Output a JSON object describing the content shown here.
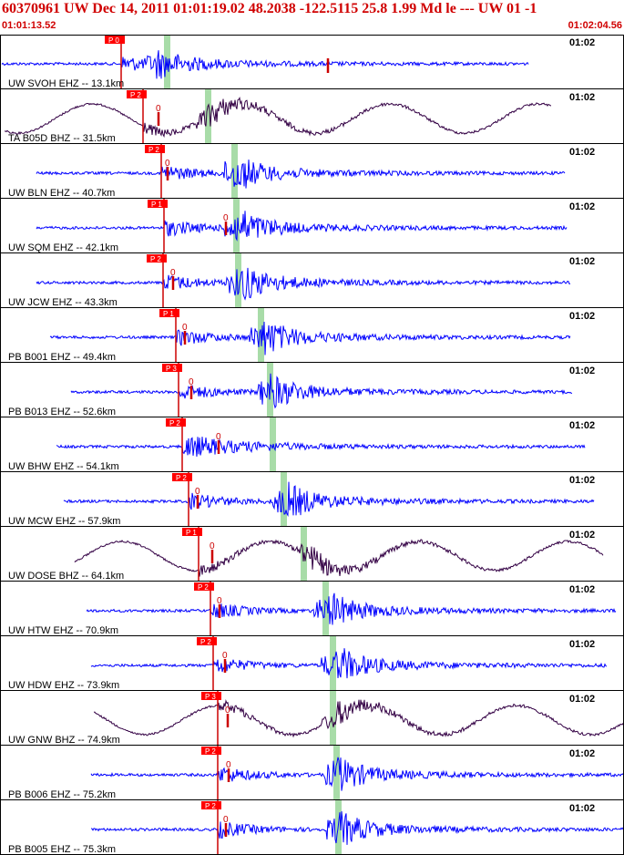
{
  "header": {
    "title": "60370961 UW Dec 14, 2011 01:01:19.02    48.2038 -122.5115 25.8 1.99 Md le --- UW 01  -1",
    "start_time": "01:01:13.52",
    "end_time": "01:02:04.56"
  },
  "colors": {
    "title": "#d00000",
    "trace_short_period": "#0000ff",
    "trace_broadband": "#330044",
    "pick_box": "#ff0000",
    "pick_line": "#cc0000",
    "s_window": "#a8dca8",
    "grid_line": "#000000"
  },
  "chart_data": {
    "type": "seismogram",
    "time_range": [
      "01:01:13.52",
      "01:02:04.56"
    ],
    "time_tick_label": "01:02",
    "traces": [
      {
        "label": "UW SVOH EHZ -- 13.1km",
        "network": "UW",
        "station": "SVOH",
        "channel": "EHZ",
        "distance_km": 13.1,
        "p_pick": "P 0",
        "coda_mark": "",
        "kind": "short_period"
      },
      {
        "label": "TA B05D BHZ -- 31.5km",
        "network": "TA",
        "station": "B05D",
        "channel": "BHZ",
        "distance_km": 31.5,
        "p_pick": "P 2",
        "coda_mark": "0",
        "kind": "broadband"
      },
      {
        "label": "UW BLN EHZ -- 40.7km",
        "network": "UW",
        "station": "BLN",
        "channel": "EHZ",
        "distance_km": 40.7,
        "p_pick": "P 2",
        "coda_mark": "0",
        "kind": "short_period"
      },
      {
        "label": "UW SQM EHZ -- 42.1km",
        "network": "UW",
        "station": "SQM",
        "channel": "EHZ",
        "distance_km": 42.1,
        "p_pick": "P 1",
        "coda_mark": "0",
        "kind": "short_period"
      },
      {
        "label": "UW JCW EHZ -- 43.3km",
        "network": "UW",
        "station": "JCW",
        "channel": "EHZ",
        "distance_km": 43.3,
        "p_pick": "P 2",
        "coda_mark": "0",
        "kind": "short_period"
      },
      {
        "label": "PB B001 EHZ -- 49.4km",
        "network": "PB",
        "station": "B001",
        "channel": "EHZ",
        "distance_km": 49.4,
        "p_pick": "P 1",
        "coda_mark": "0",
        "kind": "short_period"
      },
      {
        "label": "PB B013 EHZ -- 52.6km",
        "network": "PB",
        "station": "B013",
        "channel": "EHZ",
        "distance_km": 52.6,
        "p_pick": "P 3",
        "coda_mark": "0",
        "kind": "short_period"
      },
      {
        "label": "UW BHW EHZ -- 54.1km",
        "network": "UW",
        "station": "BHW",
        "channel": "EHZ",
        "distance_km": 54.1,
        "p_pick": "P 2",
        "coda_mark": "0",
        "kind": "short_period"
      },
      {
        "label": "UW MCW EHZ -- 57.9km",
        "network": "UW",
        "station": "MCW",
        "channel": "EHZ",
        "distance_km": 57.9,
        "p_pick": "P 2",
        "coda_mark": "0",
        "kind": "short_period"
      },
      {
        "label": "UW DOSE BHZ -- 64.1km",
        "network": "UW",
        "station": "DOSE",
        "channel": "BHZ",
        "distance_km": 64.1,
        "p_pick": "P 1",
        "coda_mark": "0",
        "kind": "broadband"
      },
      {
        "label": "UW HTW EHZ -- 70.9km",
        "network": "UW",
        "station": "HTW",
        "channel": "EHZ",
        "distance_km": 70.9,
        "p_pick": "P 2",
        "coda_mark": "0",
        "kind": "short_period"
      },
      {
        "label": "UW HDW EHZ -- 73.9km",
        "network": "UW",
        "station": "HDW",
        "channel": "EHZ",
        "distance_km": 73.9,
        "p_pick": "P 2",
        "coda_mark": "0",
        "kind": "short_period"
      },
      {
        "label": "UW GNW BHZ -- 74.9km",
        "network": "UW",
        "station": "GNW",
        "channel": "BHZ",
        "distance_km": 74.9,
        "p_pick": "P 3",
        "coda_mark": "0",
        "kind": "broadband"
      },
      {
        "label": "PB B006 EHZ -- 75.2km",
        "network": "PB",
        "station": "B006",
        "channel": "EHZ",
        "distance_km": 75.2,
        "p_pick": "P 2",
        "coda_mark": "0",
        "kind": "short_period"
      },
      {
        "label": "PB B005 EHZ -- 75.3km",
        "network": "PB",
        "station": "B005",
        "channel": "EHZ",
        "distance_km": 75.3,
        "p_pick": "P 2",
        "coda_mark": "0",
        "kind": "short_period"
      }
    ]
  }
}
